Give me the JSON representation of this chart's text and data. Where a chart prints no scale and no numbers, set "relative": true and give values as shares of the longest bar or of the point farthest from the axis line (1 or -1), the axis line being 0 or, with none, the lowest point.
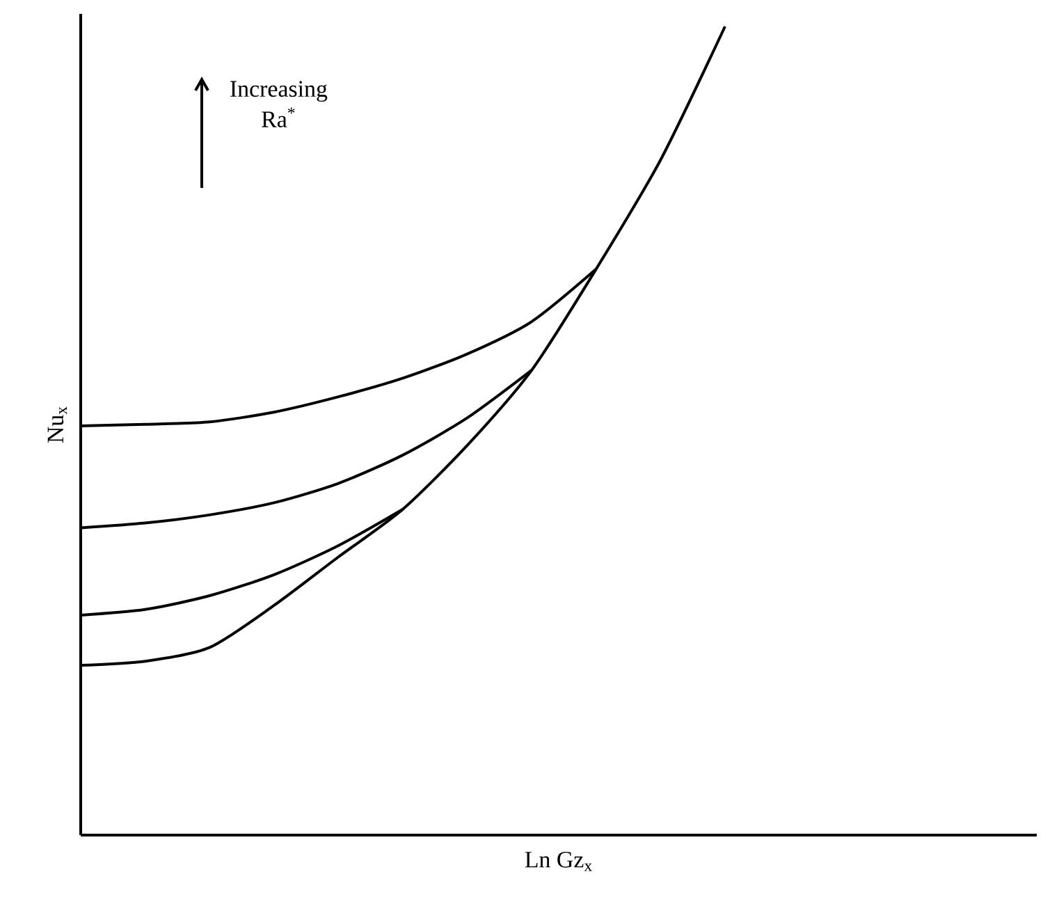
{
  "chart_data": {
    "type": "line",
    "relative": true,
    "xlabel": "Ln Gz$_{x}$",
    "ylabel": "Nu$_{x}$",
    "annotations": [
      "Increasing Ra$^{*}$"
    ],
    "categories": [
      null,
      null,
      null,
      null,
      null,
      null,
      null,
      null,
      null,
      null,
      null
    ],
    "marker": "none",
    "line_style": "solid",
    "series": [
      {
        "color": "#000000",
        "values": [
          0.21,
          0.215,
          0.232,
          0.284,
          0.344,
          0.403,
          0.482,
          0.575,
          0.7,
          0.835,
          1
        ]
      },
      {
        "color": "#000000",
        "values": [
          0.272,
          0.279,
          0.296,
          0.322,
          0.358,
          0.403,
          null,
          null,
          null,
          null,
          null
        ]
      },
      {
        "color": "#000000",
        "values": [
          0.38,
          0.386,
          0.396,
          0.411,
          0.435,
          0.47,
          0.516,
          0.575,
          null,
          null,
          null
        ]
      },
      {
        "color": "#000000",
        "values": [
          0.506,
          0.508,
          0.511,
          0.523,
          0.542,
          0.565,
          0.595,
          0.635,
          0.7,
          null,
          null
        ]
      }
    ]
  }
}
